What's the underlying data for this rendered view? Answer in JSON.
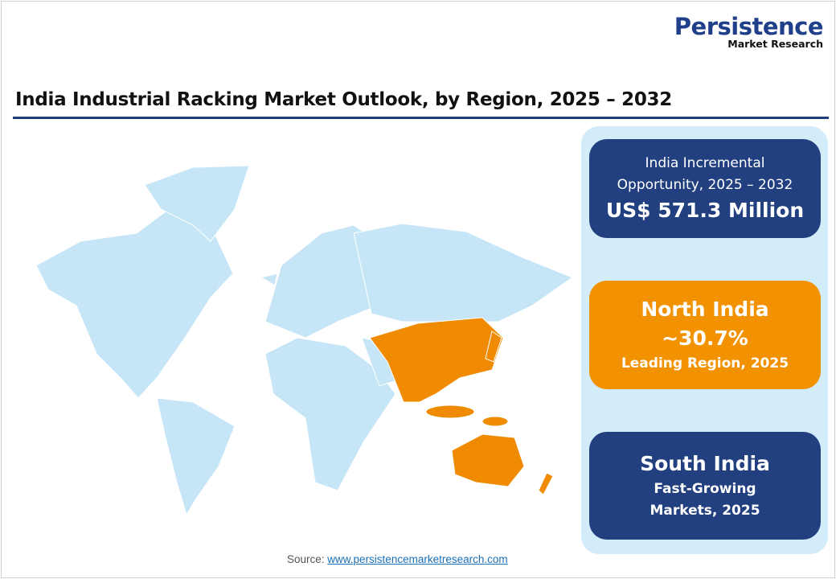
{
  "logo": {
    "line1": "Persistence",
    "line2": "Market Research"
  },
  "title": "India Industrial Racking Market Outlook, by Region, 2025 – 2032",
  "cards": [
    {
      "label": "India Incremental Opportunity, 2025 – 2032",
      "value": "US$ 571.3 Million",
      "color": "#22407f"
    },
    {
      "label": "North India",
      "value": "~30.7%",
      "sub": "Leading Region, 2025",
      "color": "#f39200"
    },
    {
      "label": "South India",
      "sub": "Fast-Growing Markets, 2025",
      "color": "#22407f"
    }
  ],
  "map": {
    "base_color": "#c6e6f8",
    "highlight_color": "#f08a00",
    "highlight": "Asia-Pacific"
  },
  "source": {
    "label": "Source:",
    "link": "www.persistencemarketresearch.com"
  }
}
